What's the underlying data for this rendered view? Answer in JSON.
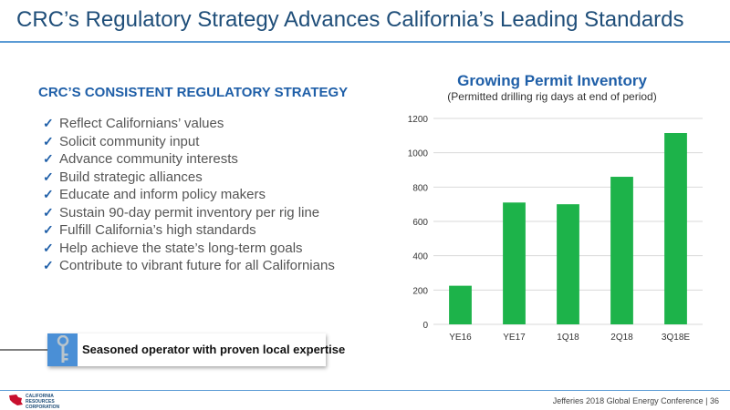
{
  "slide": {
    "title": "CRC’s Regulatory Strategy Advances California’s Leading Standards",
    "footer": "Jefferies 2018 Global Energy Conference  |  36"
  },
  "strategy": {
    "heading": "CRC’S CONSISTENT REGULATORY STRATEGY",
    "items": [
      "Reflect Californians’ values",
      "Solicit community input",
      "Advance community interests",
      "Build strategic alliances",
      "Educate and inform policy makers",
      "Sustain 90-day permit inventory per rig line",
      "Fulfill California’s high standards",
      "Help achieve the state’s long-term goals",
      "Contribute to vibrant future for all Californians"
    ]
  },
  "callout": {
    "text": "Seasoned operator with proven local expertise"
  },
  "logo": {
    "line1": "CALIFORNIA",
    "line2": "RESOURCES",
    "line3": "CORPORATION"
  },
  "colors": {
    "accent": "#1f5fa8",
    "bar": "#1db34a",
    "rule": "#5b9bd5"
  },
  "chart_data": {
    "type": "bar",
    "title": "Growing Permit Inventory",
    "subtitle": "(Permitted drilling rig days at end of period)",
    "categories": [
      "YE16",
      "YE17",
      "1Q18",
      "2Q18",
      "3Q18E"
    ],
    "values": [
      225,
      710,
      700,
      860,
      1115
    ],
    "ylim": [
      0,
      1200
    ],
    "yticks": [
      0,
      200,
      400,
      600,
      800,
      1000,
      1200
    ],
    "grid": true,
    "xlabel": "",
    "ylabel": ""
  }
}
